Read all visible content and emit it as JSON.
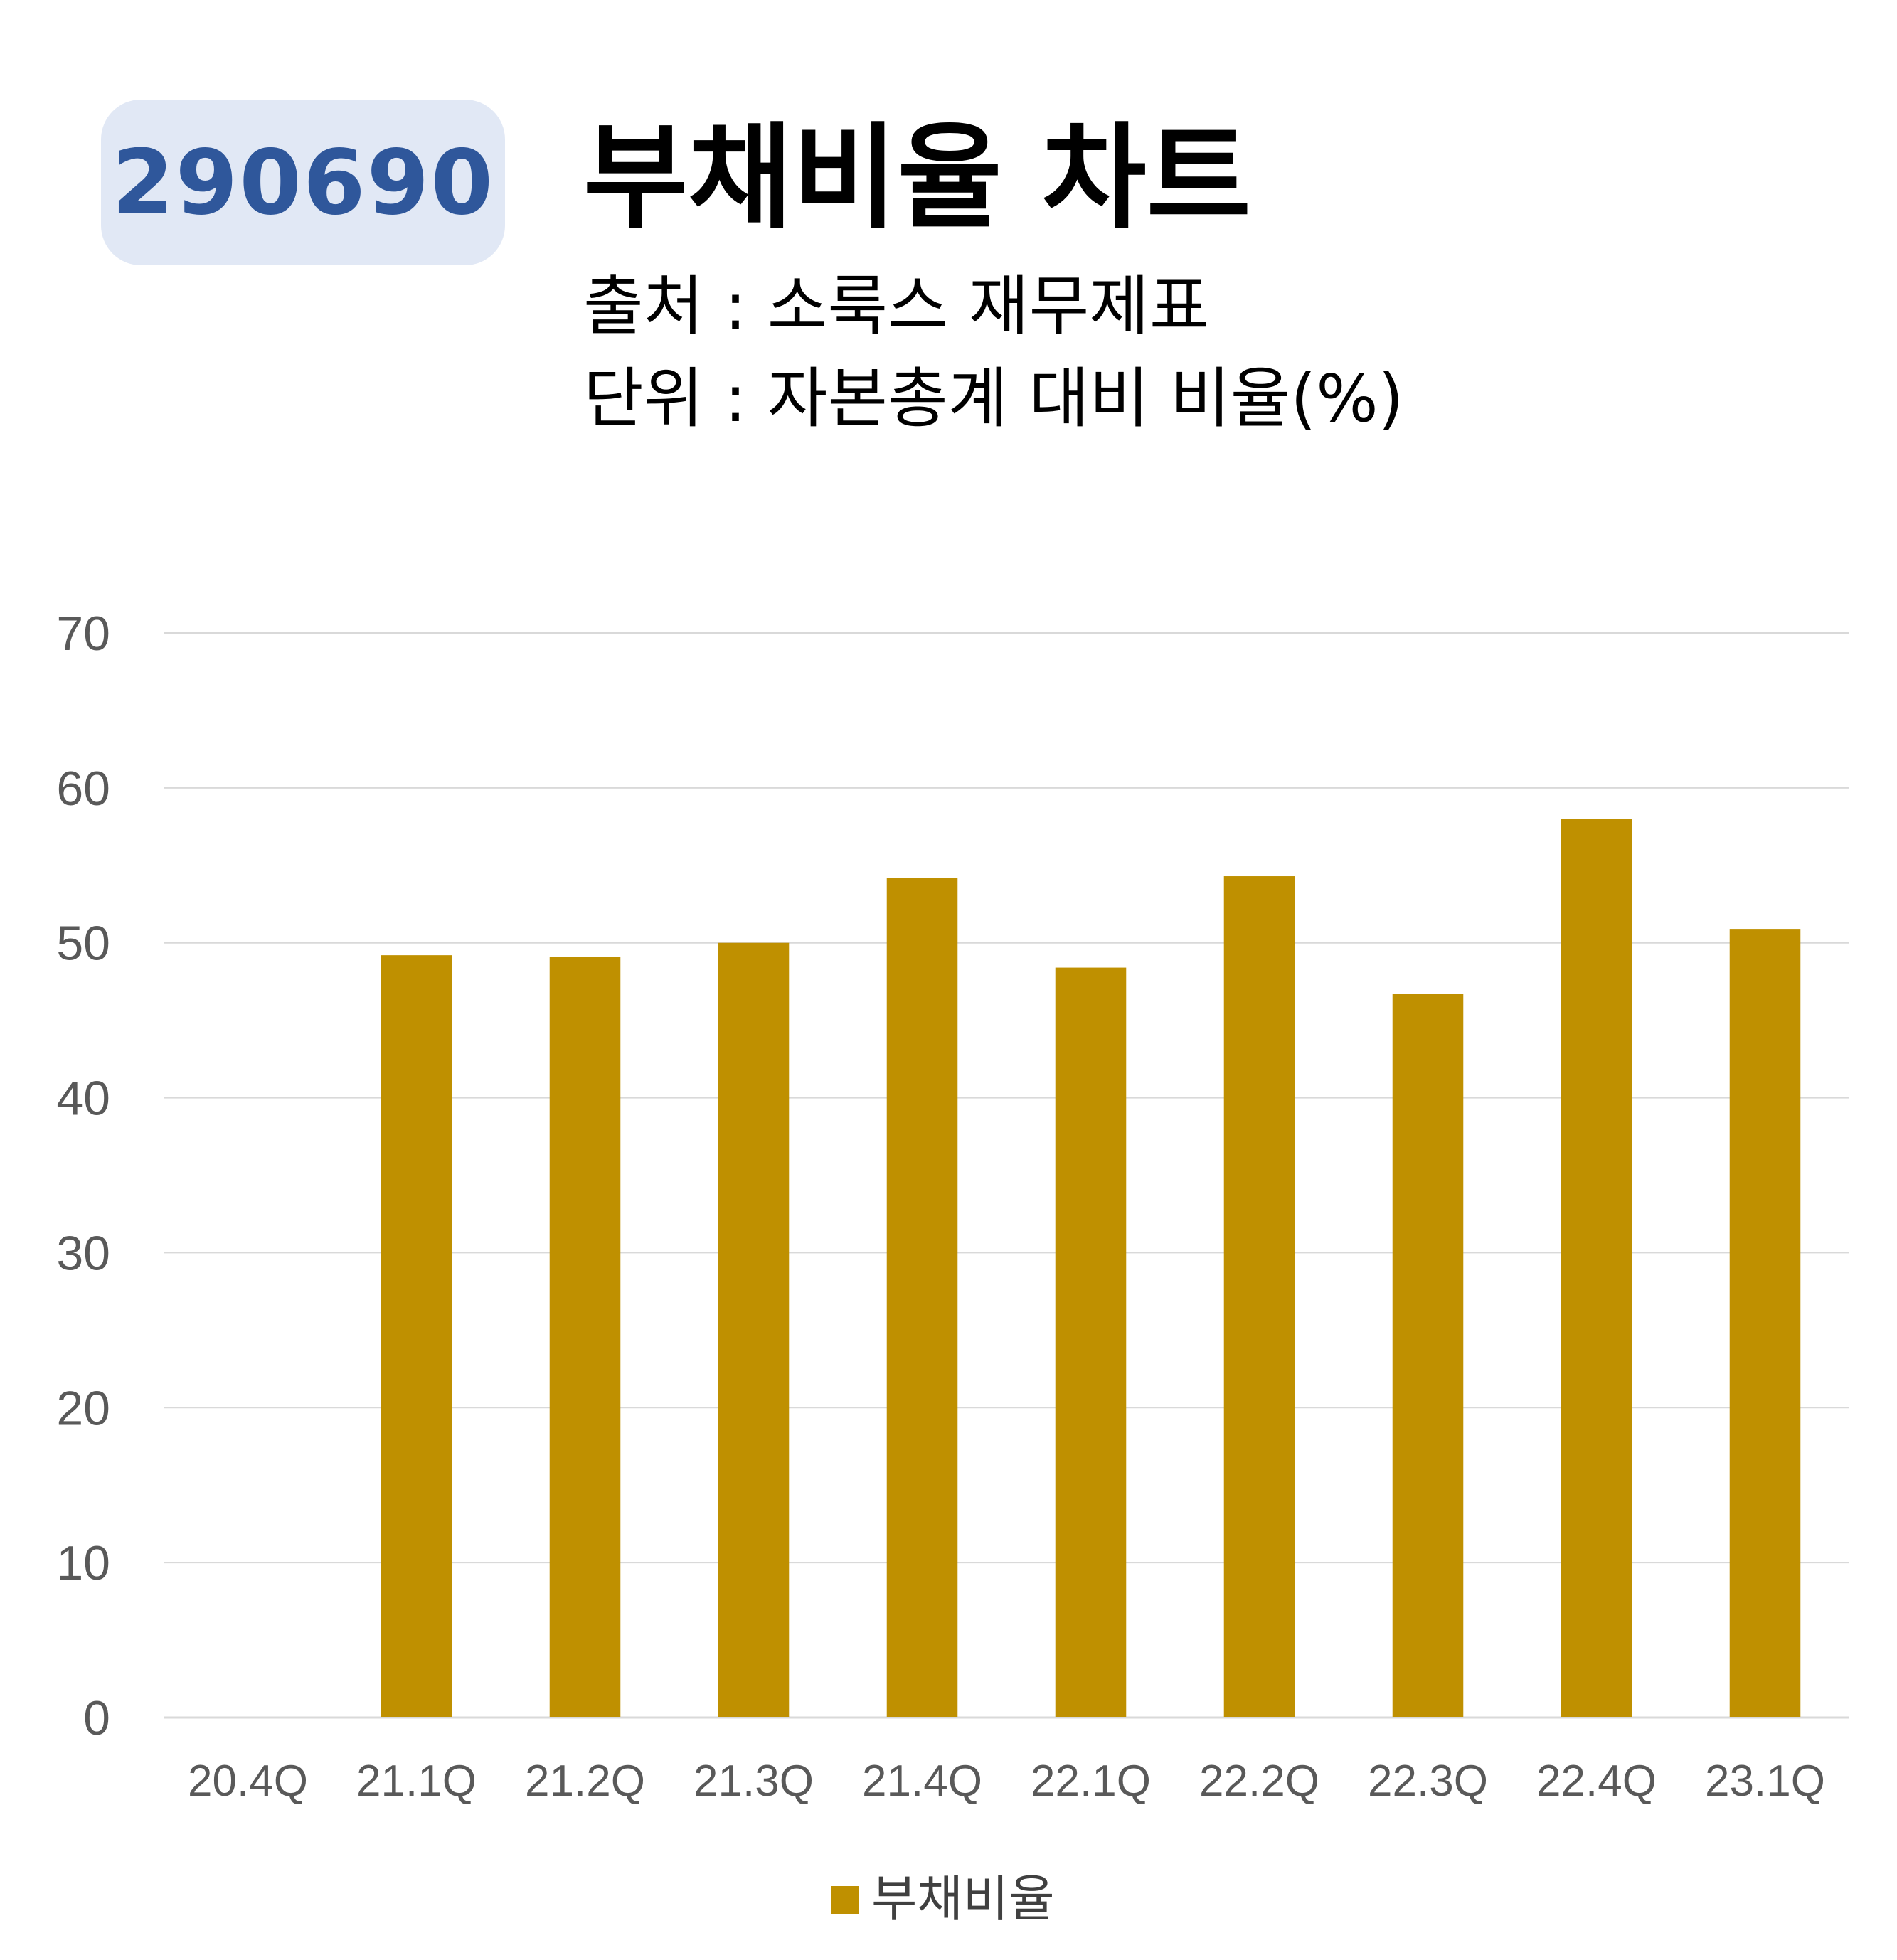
{
  "header": {
    "code": "290690",
    "title": "부채비율 차트",
    "source": "출처 : 소룩스 재무제표",
    "unit": "단위 : 자본총계 대비 비율(%)"
  },
  "colors": {
    "bar": "#bf9000",
    "badge_bg": "#e1e8f5",
    "badge_text": "#2f579b",
    "grid": "#d9d9d9"
  },
  "chart_data": {
    "type": "bar",
    "categories": [
      "20.4Q",
      "21.1Q",
      "21.2Q",
      "21.3Q",
      "21.4Q",
      "22.1Q",
      "22.2Q",
      "22.3Q",
      "22.4Q",
      "23.1Q"
    ],
    "series": [
      {
        "name": "부채비율",
        "values": [
          null,
          49.2,
          49.1,
          50.0,
          54.2,
          48.4,
          54.3,
          46.7,
          58.0,
          50.9
        ]
      }
    ],
    "ylim": [
      0,
      70
    ],
    "yticks": [
      "0",
      "10",
      "20",
      "30",
      "40",
      "50",
      "60",
      "70"
    ],
    "grid": true,
    "legend_position": "bottom"
  }
}
